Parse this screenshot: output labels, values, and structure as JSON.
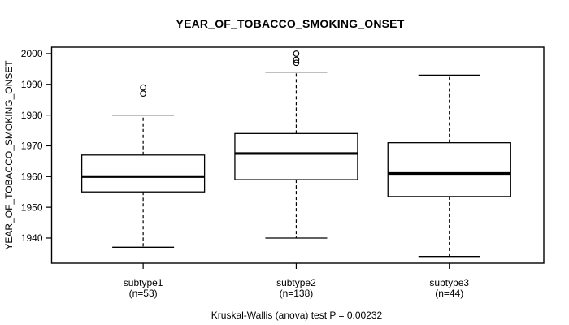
{
  "figure": {
    "title": "YEAR_OF_TOBACCO_SMOKING_ONSET",
    "y_axis_title": "YEAR_OF_TOBACCO_SMOKING_ONSET",
    "caption": "Kruskal-Wallis (anova) test P = 0.00232"
  },
  "chart_data": {
    "type": "boxplot",
    "title": "YEAR_OF_TOBACCO_SMOKING_ONSET",
    "xlabel": "",
    "ylabel": "YEAR_OF_TOBACCO_SMOKING_ONSET",
    "caption": "Kruskal-Wallis (anova) test P = 0.00232",
    "grid": false,
    "legend": "none",
    "ylim": [
      1931.8,
      2002.1
    ],
    "yticks": [
      1940,
      1950,
      1960,
      1970,
      1980,
      1990,
      2000
    ],
    "categories": [
      "subtype1",
      "subtype2",
      "subtype3"
    ],
    "series": [
      {
        "label": "subtype1",
        "n_label": "(n=53)",
        "n": 53,
        "whisker_low": 1937,
        "q1": 1955,
        "median": 1960,
        "q3": 1967,
        "whisker_high": 1980,
        "outliers": [
          1987,
          1989
        ]
      },
      {
        "label": "subtype2",
        "n_label": "(n=138)",
        "n": 138,
        "whisker_low": 1940,
        "q1": 1959,
        "median": 1967.5,
        "q3": 1974,
        "whisker_high": 1994,
        "outliers": [
          1997,
          1998,
          2000
        ]
      },
      {
        "label": "subtype3",
        "n_label": "(n=44)",
        "n": 44,
        "whisker_low": 1934,
        "q1": 1953.5,
        "median": 1961,
        "q3": 1971,
        "whisker_high": 1993,
        "outliers": []
      }
    ],
    "colors": {
      "line": "#000000",
      "box_fill": "#ffffff",
      "background": "#ffffff"
    }
  }
}
